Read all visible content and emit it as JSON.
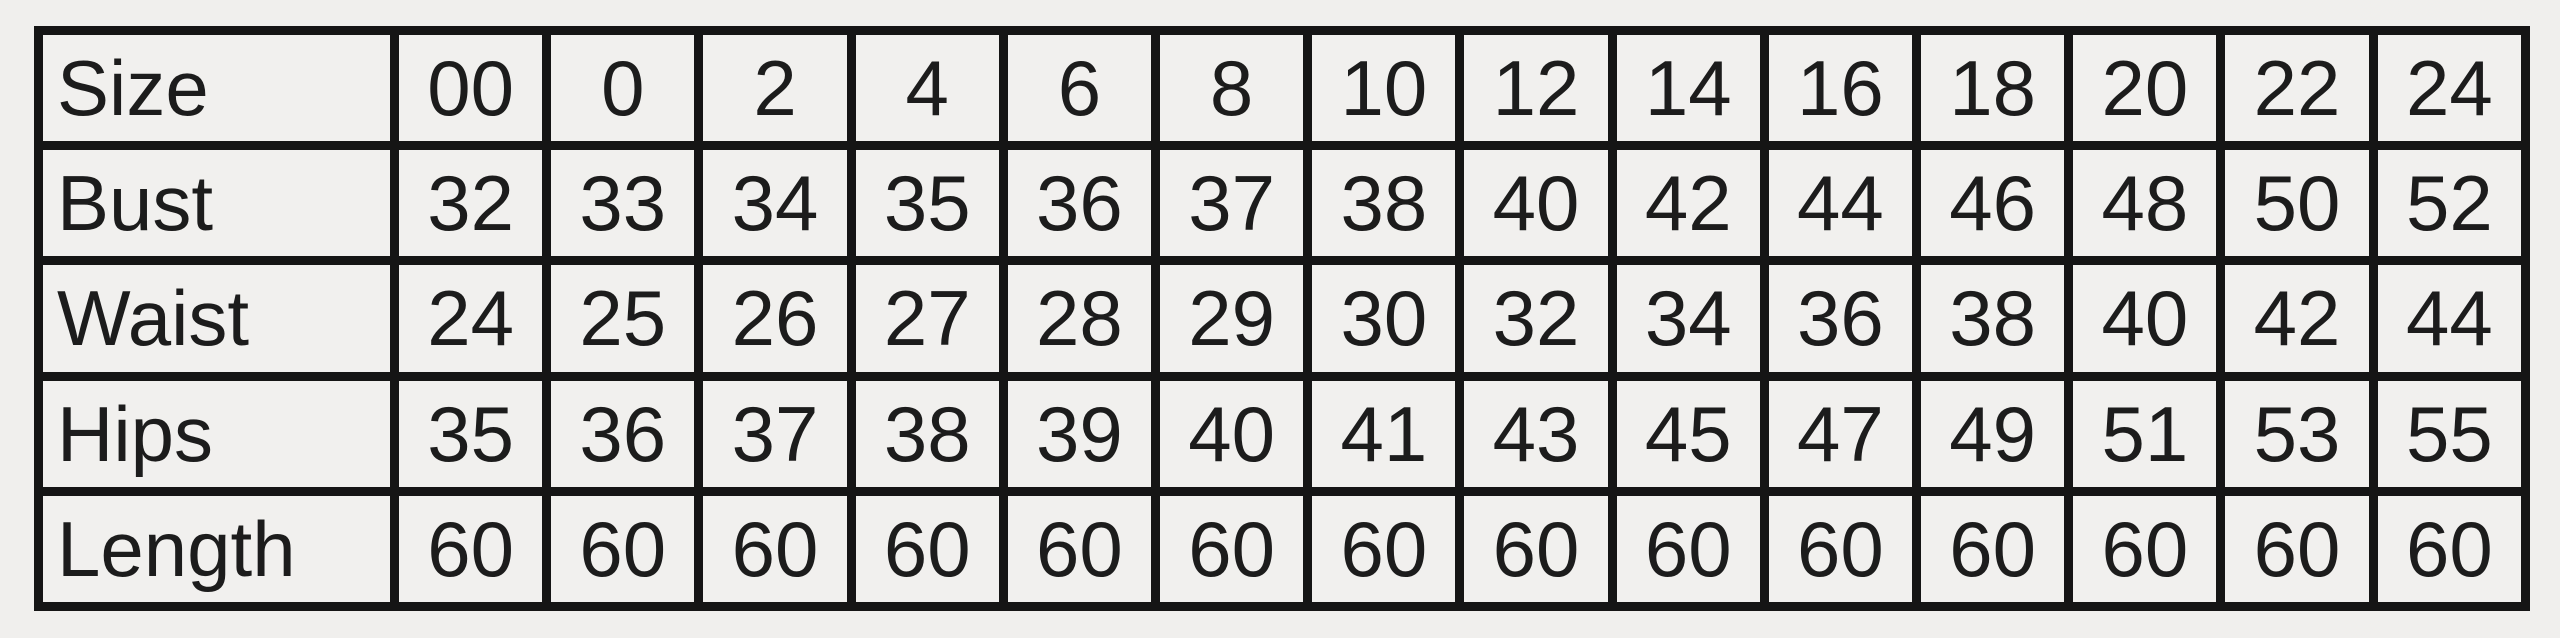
{
  "colors": {
    "background": "#f0efed",
    "cell_background": "#f1f0ee",
    "border": "#151515",
    "text": "#1c1c1c"
  },
  "chart_data": {
    "type": "table",
    "columns_count": 15,
    "rows": [
      {
        "label": "Size",
        "values": [
          "00",
          "0",
          "2",
          "4",
          "6",
          "8",
          "10",
          "12",
          "14",
          "16",
          "18",
          "20",
          "22",
          "24"
        ]
      },
      {
        "label": "Bust",
        "values": [
          "32",
          "33",
          "34",
          "35",
          "36",
          "37",
          "38",
          "40",
          "42",
          "44",
          "46",
          "48",
          "50",
          "52"
        ]
      },
      {
        "label": "Waist",
        "values": [
          "24",
          "25",
          "26",
          "27",
          "28",
          "29",
          "30",
          "32",
          "34",
          "36",
          "38",
          "40",
          "42",
          "44"
        ]
      },
      {
        "label": "Hips",
        "values": [
          "35",
          "36",
          "37",
          "38",
          "39",
          "40",
          "41",
          "43",
          "45",
          "47",
          "49",
          "51",
          "53",
          "55"
        ]
      },
      {
        "label": "Length",
        "values": [
          "60",
          "60",
          "60",
          "60",
          "60",
          "60",
          "60",
          "60",
          "60",
          "60",
          "60",
          "60",
          "60",
          "60"
        ]
      }
    ]
  }
}
